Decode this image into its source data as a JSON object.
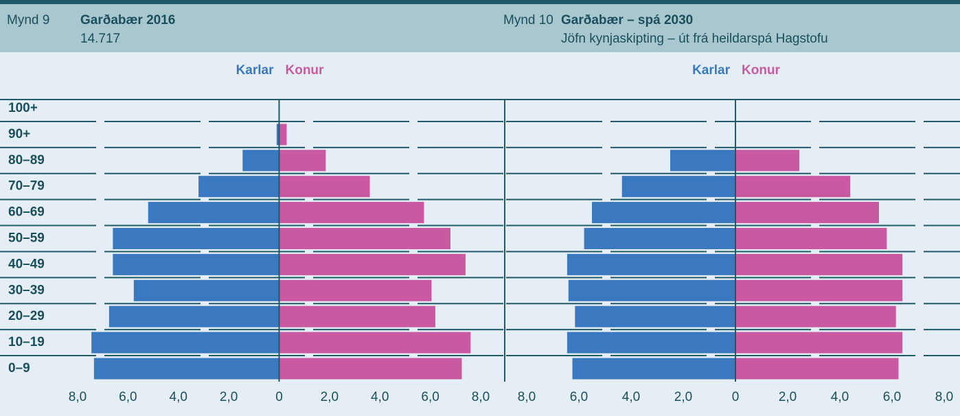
{
  "chart_data": [
    {
      "type": "pyramid",
      "figure_label": "Mynd 9",
      "title": "Garðabær 2016",
      "subtitle": "14.717",
      "categories": [
        "100+",
        "90+",
        "80–89",
        "70–79",
        "60–69",
        "50–59",
        "40–49",
        "30–39",
        "20–29",
        "10–19",
        "0–9"
      ],
      "series": [
        {
          "name": "Karlar",
          "color": "#3a78bf",
          "values": [
            0,
            0.1,
            1.45,
            3.2,
            5.2,
            6.6,
            6.6,
            5.77,
            6.75,
            7.45,
            7.35
          ]
        },
        {
          "name": "Konur",
          "color": "#c95aa1",
          "values": [
            0,
            0.3,
            1.85,
            3.6,
            5.75,
            6.8,
            7.4,
            6.05,
            6.2,
            7.6,
            7.25
          ]
        }
      ],
      "xlim": [
        -8,
        8
      ],
      "xticks": [
        {
          "value": -8,
          "label": "8,0"
        },
        {
          "value": -6,
          "label": "6,0"
        },
        {
          "value": -4,
          "label": "4,0"
        },
        {
          "value": -2,
          "label": "2,0"
        },
        0,
        {
          "value": 2,
          "label": "2,0"
        },
        {
          "value": 4,
          "label": "4,0"
        },
        {
          "value": 6,
          "label": "6,0"
        },
        {
          "value": 8,
          "label": "8,0"
        }
      ]
    },
    {
      "type": "pyramid",
      "figure_label": "Mynd 10",
      "title": "Garðabær – spá 2030",
      "subtitle": "Jöfn kynjaskipting – út frá heildarspá Hagstofu",
      "categories": [
        "100+",
        "90+",
        "80–89",
        "70–79",
        "60–69",
        "50–59",
        "40–49",
        "30–39",
        "20–29",
        "10–19",
        "0–9"
      ],
      "series": [
        {
          "name": "Karlar",
          "color": "#3a78bf",
          "values": [
            0,
            0,
            2.5,
            4.35,
            5.5,
            5.8,
            6.45,
            6.4,
            6.15,
            6.45,
            6.25
          ]
        },
        {
          "name": "Konur",
          "color": "#c95aa1",
          "values": [
            0,
            0,
            2.45,
            4.4,
            5.5,
            5.8,
            6.4,
            6.4,
            6.15,
            6.4,
            6.25
          ]
        }
      ],
      "xlim": [
        -8,
        8
      ],
      "xticks": [
        {
          "value": -8,
          "label": "8,0"
        },
        {
          "value": -6,
          "label": "6,0"
        },
        {
          "value": -4,
          "label": "4,0"
        },
        {
          "value": -2,
          "label": "2,0"
        },
        0,
        {
          "value": 2,
          "label": "2,0"
        },
        {
          "value": 4,
          "label": "4,0"
        },
        {
          "value": 6,
          "label": "6,0"
        },
        {
          "value": 8,
          "label": "8,0"
        }
      ]
    }
  ]
}
